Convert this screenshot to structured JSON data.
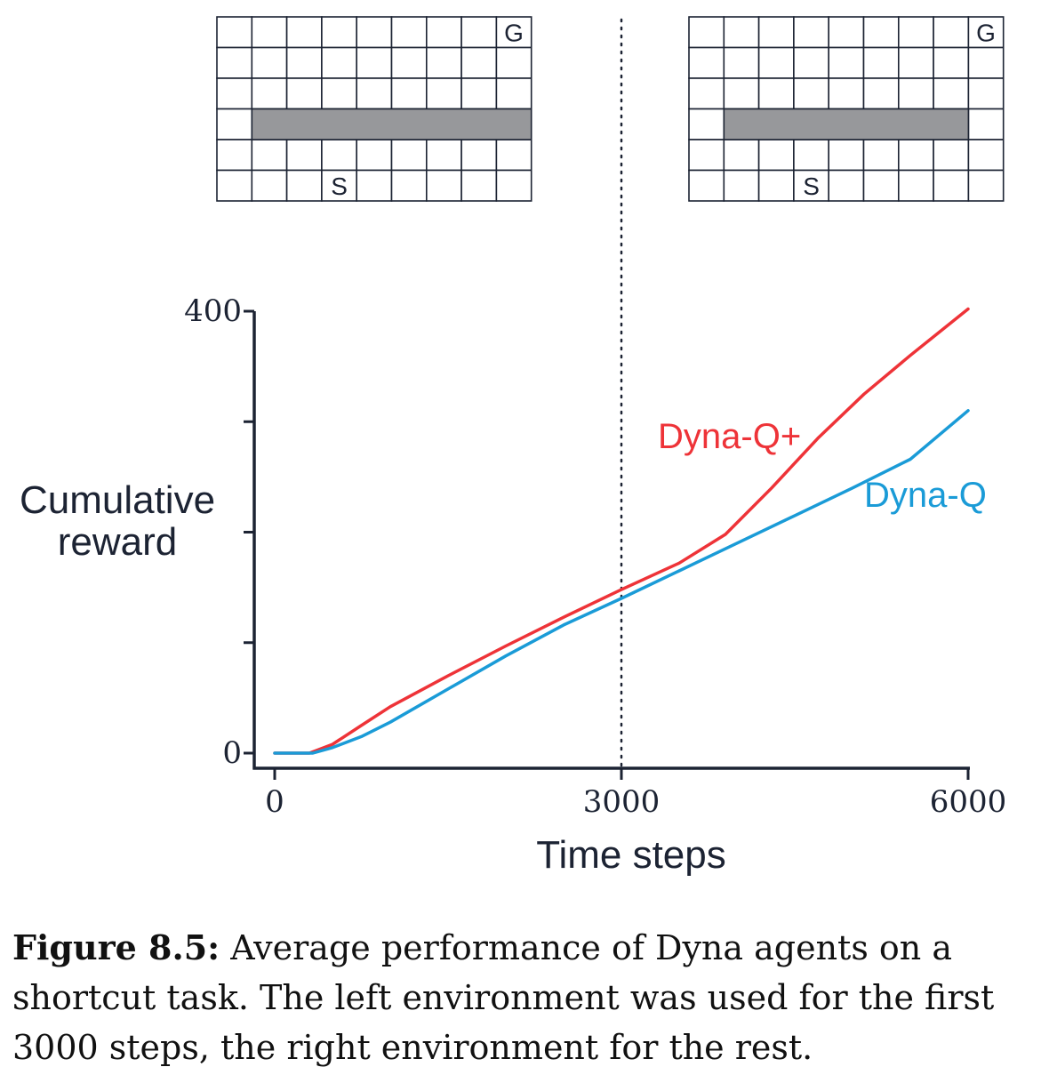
{
  "chart_data": {
    "type": "line",
    "xlabel": "Time steps",
    "ylabel_lines": [
      "Cumulative",
      "reward"
    ],
    "xlim": [
      0,
      6000
    ],
    "ylim": [
      0,
      400
    ],
    "xticks": [
      0,
      3000,
      6000
    ],
    "xtick_labels": [
      "0",
      "3000",
      "6000"
    ],
    "yticks": [
      0,
      100,
      200,
      300,
      400
    ],
    "ytick_labels": [
      "0",
      "",
      "",
      "",
      "400"
    ],
    "vline_x": 3000,
    "series": [
      {
        "name": "Dyna-Q+",
        "color": "#ee3338",
        "x": [
          0,
          300,
          500,
          750,
          1000,
          1500,
          2000,
          2500,
          3000,
          3500,
          3900,
          4300,
          4700,
          5100,
          5500,
          6000
        ],
        "y": [
          0,
          0,
          8,
          25,
          42,
          70,
          97,
          123,
          148,
          172,
          198,
          240,
          285,
          325,
          360,
          402
        ]
      },
      {
        "name": "Dyna-Q",
        "color": "#1a9bd7",
        "x": [
          0,
          330,
          500,
          750,
          1000,
          1500,
          2000,
          2500,
          3000,
          3500,
          4000,
          4500,
          5000,
          5500,
          6000
        ],
        "y": [
          0,
          0,
          5,
          15,
          28,
          58,
          88,
          116,
          140,
          165,
          190,
          215,
          240,
          266,
          310
        ]
      }
    ]
  },
  "gridworld": {
    "goal_label": "G",
    "start_label": "S",
    "rows": 6,
    "cols": 9,
    "left": {
      "wall_row": 3,
      "wall_cols": [
        1,
        2,
        3,
        4,
        5,
        6,
        7,
        8
      ],
      "start": [
        5,
        3
      ],
      "goal": [
        0,
        8
      ]
    },
    "right": {
      "wall_row": 3,
      "wall_cols": [
        1,
        2,
        3,
        4,
        5,
        6,
        7
      ],
      "start": [
        5,
        3
      ],
      "goal": [
        0,
        8
      ]
    },
    "wall_color": "#97989b",
    "line_color": "#1c2333"
  },
  "caption": {
    "label": "Figure 8.5:",
    "text": "Average performance of Dyna agents on a shortcut task. The left environment was used for the first 3000 steps, the right environment for the rest."
  }
}
